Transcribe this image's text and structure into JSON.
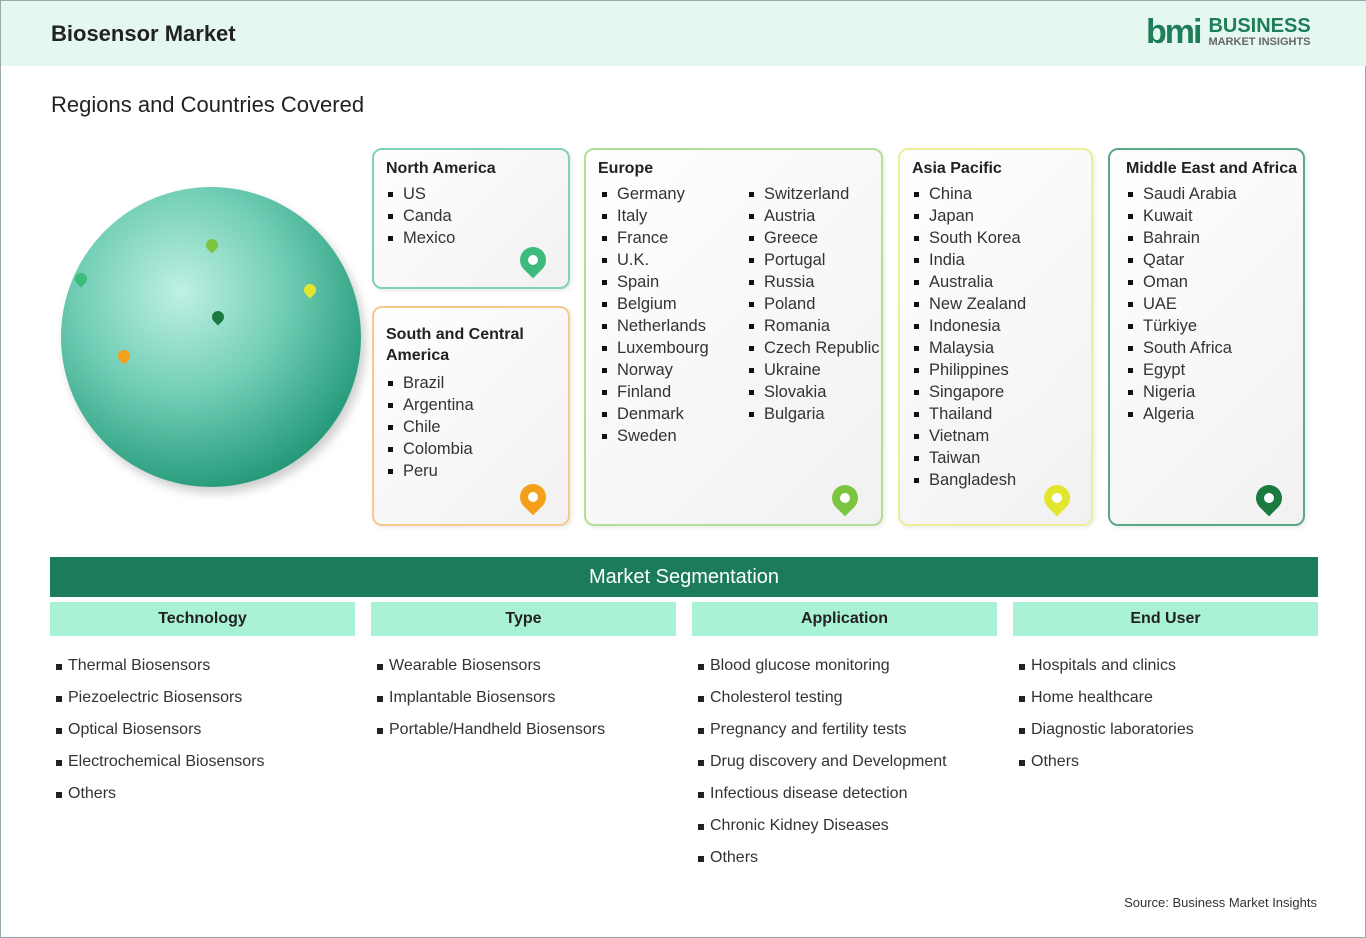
{
  "header": {
    "title": "Biosensor Market",
    "logo_mark": "bmi",
    "logo_line1": "BUSINESS",
    "logo_line2": "MARKET INSIGHTS"
  },
  "subtitle": "Regions and Countries Covered",
  "regions": [
    {
      "name": "North America",
      "color": "#3dbb7d",
      "countries": [
        "US",
        "Canda",
        "Mexico"
      ]
    },
    {
      "name": "South and Central America",
      "color": "#f5a01a",
      "countries": [
        "Brazil",
        "Argentina",
        "Chile",
        "Colombia",
        "Peru"
      ]
    },
    {
      "name": "Europe",
      "color": "#7cc540",
      "countries": [
        "Germany",
        "Italy",
        "France",
        "U.K.",
        "Spain",
        "Belgium",
        "Netherlands",
        "Luxembourg",
        "Norway",
        "Finland",
        "Denmark",
        "Sweden"
      ],
      "countries_col2": [
        "Switzerland",
        "Austria",
        "Greece",
        "Portugal",
        "Russia",
        "Poland",
        "Romania",
        "Czech Republic",
        "Ukraine",
        "Slovakia",
        "Bulgaria"
      ]
    },
    {
      "name": "Asia Pacific",
      "color": "#e3e62e",
      "countries": [
        "China",
        "Japan",
        "South Korea",
        "India",
        "Australia",
        "New Zealand",
        "Indonesia",
        "Malaysia",
        "Philippines",
        "Singapore",
        "Thailand",
        "Vietnam",
        "Taiwan",
        "Bangladesh"
      ]
    },
    {
      "name": "Middle East and Africa",
      "color": "#1a7a40",
      "countries": [
        "Saudi Arabia",
        "Kuwait",
        "Bahrain",
        "Qatar",
        "Oman",
        "UAE",
        "Türkiye",
        "South Africa",
        "Egypt",
        "Nigeria",
        "Algeria"
      ]
    }
  ],
  "segmentation": {
    "title": "Market Segmentation",
    "columns": [
      {
        "header": "Technology",
        "items": [
          "Thermal Biosensors",
          "Piezoelectric Biosensors",
          "Optical Biosensors",
          "Electrochemical Biosensors",
          "Others"
        ]
      },
      {
        "header": "Type",
        "items": [
          "Wearable Biosensors",
          "Implantable Biosensors",
          "Portable/Handheld Biosensors"
        ]
      },
      {
        "header": "Application",
        "items": [
          "Blood glucose monitoring",
          "Cholesterol testing",
          "Pregnancy and fertility tests",
          "Drug discovery and Development",
          "Infectious disease detection",
          "Chronic Kidney Diseases",
          "Others"
        ]
      },
      {
        "header": "End User",
        "items": [
          "Hospitals and clinics",
          "Home healthcare",
          "Diagnostic laboratories",
          "Others"
        ]
      }
    ]
  },
  "source": "Source: Business Market Insights"
}
